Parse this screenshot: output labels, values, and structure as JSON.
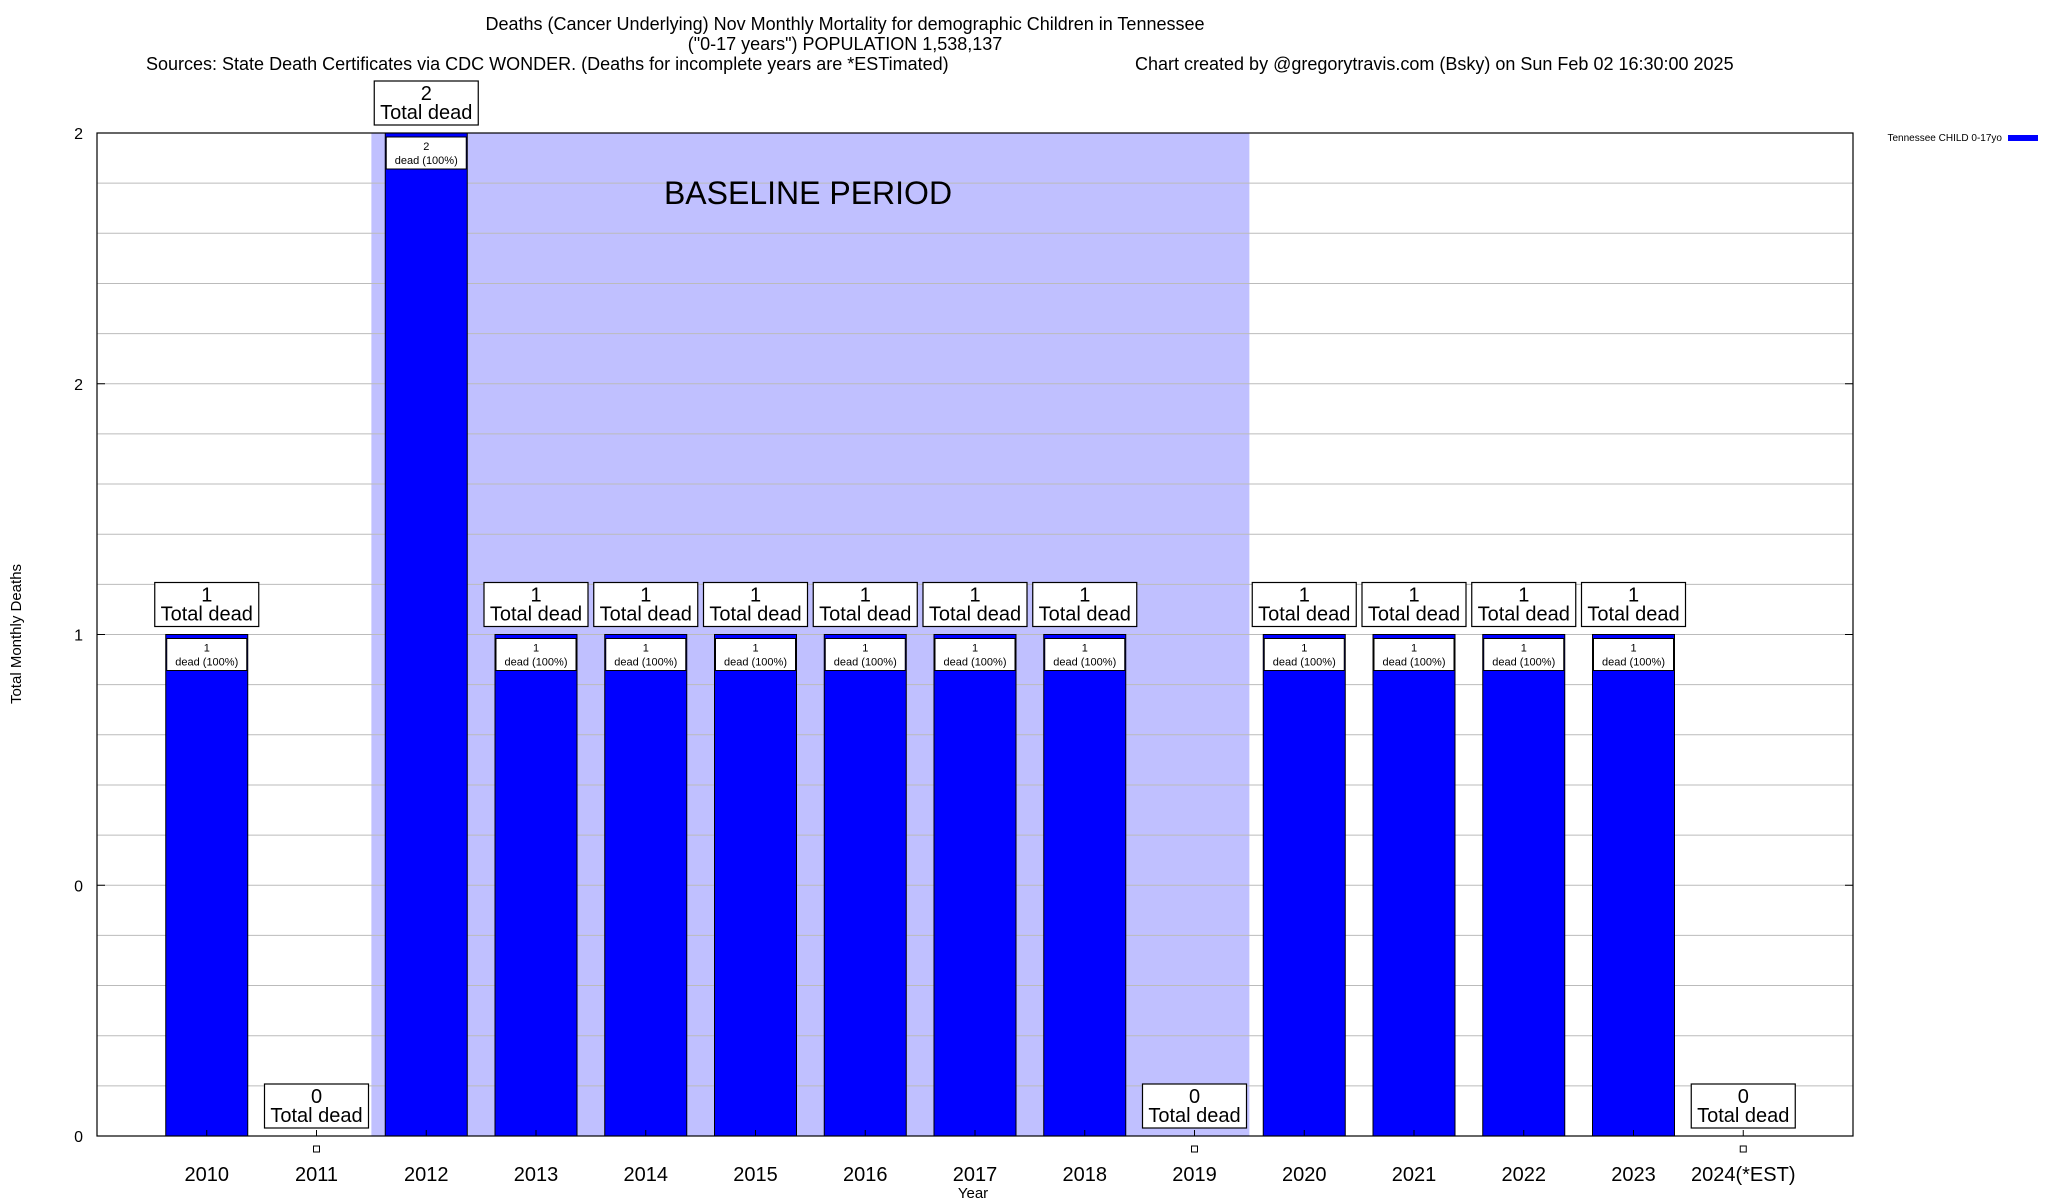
{
  "chart_data": {
    "type": "bar",
    "title": "Deaths (Cancer Underlying) Nov Monthly Mortality for demographic Children in Tennessee",
    "subtitle": "(\"0-17 years\") POPULATION 1,538,137",
    "sources": "Sources: State Death Certificates via CDC WONDER. (Deaths for incomplete years are *ESTimated)",
    "credit": "Chart created by @gregorytravis.com (Bsky) on Sun Feb 02 16:30:00 2025",
    "xlabel": "Year",
    "ylabel": "Total Monthly Deaths",
    "categories": [
      "2010",
      "2011",
      "2012",
      "2013",
      "2014",
      "2015",
      "2016",
      "2017",
      "2018",
      "2019",
      "2020",
      "2021",
      "2022",
      "2023",
      "2024(*EST)"
    ],
    "ylim": [
      0,
      2
    ],
    "yticks": [
      "0",
      "0",
      "1",
      "2",
      "2"
    ],
    "series": [
      {
        "name": "Tennessee CHILD 0-17yo",
        "color": "#0000ff",
        "values": [
          1,
          0,
          2,
          1,
          1,
          1,
          1,
          1,
          1,
          0,
          1,
          1,
          1,
          1,
          0
        ]
      }
    ],
    "total_label_suffix": "Total dead",
    "inbar_label_suffix": "dead (100%)",
    "baseline": {
      "label": "BASELINE PERIOD",
      "start": "2012",
      "end": "2019",
      "color": "#c0c0ff"
    },
    "grid": true,
    "legend": "top-right"
  }
}
